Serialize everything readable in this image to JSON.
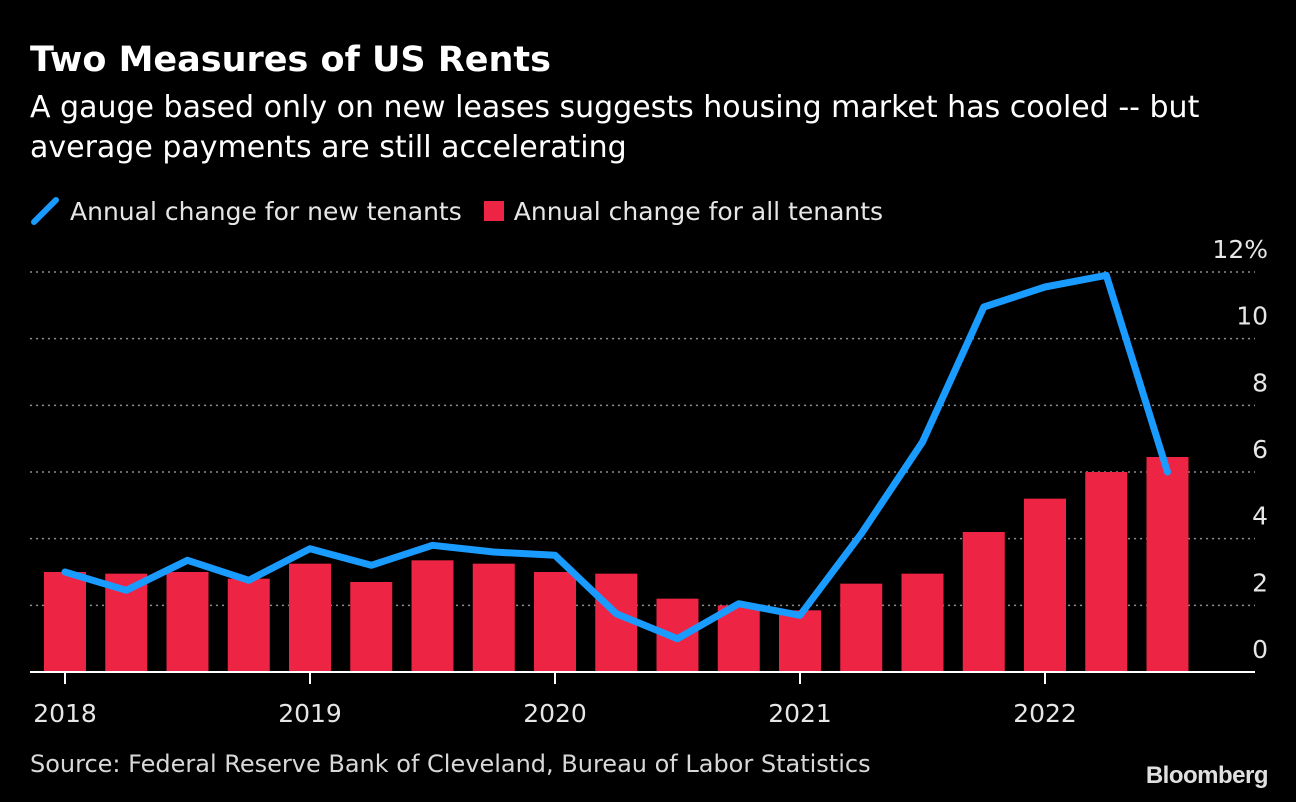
{
  "header": {
    "title": "Two Measures of US Rents",
    "subtitle": "A gauge based only on new leases suggests housing market has cooled -- but average payments are still accelerating"
  },
  "colors": {
    "line": "#1a9bff",
    "bar": "#ee2445",
    "grid": "#8c8c8c",
    "axis": "#ffffff",
    "text": "#e6e6e6"
  },
  "chart_data": {
    "type": "bar",
    "title": "Two Measures of US Rents",
    "xlabel": "",
    "ylabel": "",
    "ylim": [
      0,
      12
    ],
    "y_ticks": [
      0,
      2,
      4,
      6,
      8,
      10,
      12
    ],
    "y_tick_labels": [
      "0",
      "2",
      "4",
      "6",
      "8",
      "10",
      "12%"
    ],
    "grid": true,
    "legend_position": "top-left",
    "x_tick_labels": [
      "2018",
      "2019",
      "2020",
      "2021",
      "2022"
    ],
    "categories": [
      "2018 Q1",
      "2018 Q2",
      "2018 Q3",
      "2018 Q4",
      "2019 Q1",
      "2019 Q2",
      "2019 Q3",
      "2019 Q4",
      "2020 Q1",
      "2020 Q2",
      "2020 Q3",
      "2020 Q4",
      "2021 Q1",
      "2021 Q2",
      "2021 Q3",
      "2021 Q4",
      "2022 Q1",
      "2022 Q2",
      "2022 Q3"
    ],
    "series": [
      {
        "name": "Annual change for new tenants",
        "type": "line",
        "values": [
          3.0,
          2.45,
          3.35,
          2.75,
          3.7,
          3.2,
          3.8,
          3.6,
          3.5,
          1.75,
          1.0,
          2.05,
          1.7,
          4.15,
          6.9,
          10.95,
          11.55,
          11.9,
          6.0
        ]
      },
      {
        "name": "Annual change for all tenants",
        "type": "bar",
        "values": [
          3.0,
          2.95,
          3.0,
          2.8,
          3.25,
          2.7,
          3.35,
          3.25,
          3.0,
          2.95,
          2.2,
          2.0,
          1.85,
          2.65,
          2.95,
          4.2,
          5.2,
          6.0,
          6.45
        ]
      }
    ]
  },
  "footer": {
    "source": "Source: Federal Reserve Bank of Cleveland, Bureau of Labor Statistics",
    "brand": "Bloomberg"
  }
}
